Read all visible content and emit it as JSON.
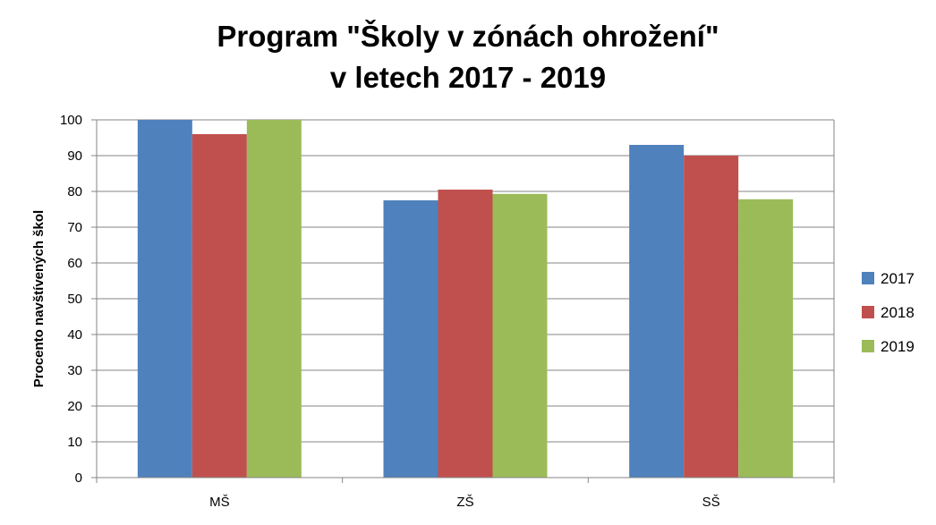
{
  "chart_data": {
    "type": "bar",
    "title": [
      "Program \"Školy v zónách ohrožení\"",
      "v letech 2017 - 2019"
    ],
    "ylabel": "Procento navštívených škol",
    "xlabel": "",
    "ylim": [
      0,
      100
    ],
    "yticks": [
      0,
      10,
      20,
      30,
      40,
      50,
      60,
      70,
      80,
      90,
      100
    ],
    "categories": [
      "MŠ",
      "ZŠ",
      "SŠ"
    ],
    "series": [
      {
        "name": "2017",
        "color": "#4F81BD",
        "values": [
          100,
          77.5,
          93
        ]
      },
      {
        "name": "2018",
        "color": "#C0504D",
        "values": [
          96,
          80.5,
          90
        ]
      },
      {
        "name": "2019",
        "color": "#9BBB59",
        "values": [
          100,
          79.3,
          77.8
        ]
      }
    ],
    "grid": true,
    "legend": "right"
  }
}
